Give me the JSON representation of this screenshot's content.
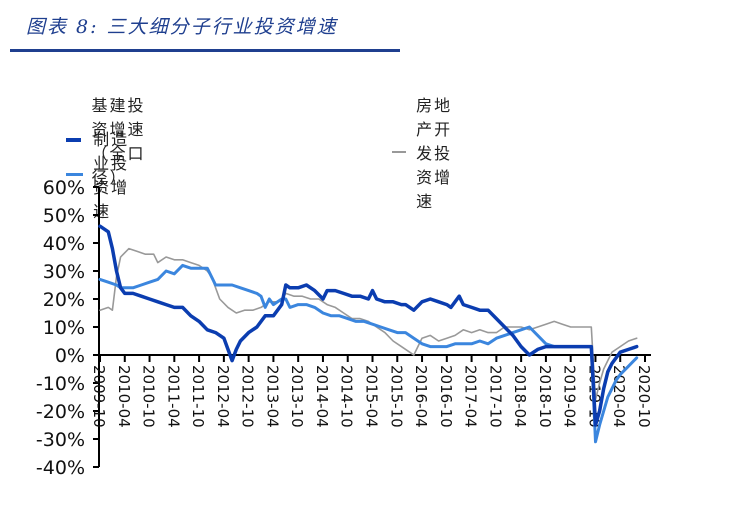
{
  "title": "图表 8: 三大细分子行业投资增速",
  "colors": {
    "infrastructure": "#0b3db0",
    "real_estate": "#999999",
    "manufacturing": "#3b86de",
    "title": "#1f3f8f",
    "axis": "#000000"
  },
  "legend": [
    {
      "label": "基建投资增速（全口径）",
      "color": "#0b3db0"
    },
    {
      "label": "房地产开发投资增速",
      "color": "#999999"
    },
    {
      "label": "制造业投资增速",
      "color": "#3b86de"
    }
  ],
  "chart_data": {
    "type": "line",
    "title": "图表 8: 三大细分子行业投资增速",
    "xlabel": "",
    "ylabel": "",
    "ylim": [
      -40,
      60
    ],
    "y_ticks": [
      "60%",
      "50%",
      "40%",
      "30%",
      "20%",
      "10%",
      "0%",
      "-10%",
      "-20%",
      "-30%",
      "-40%"
    ],
    "x_ticks": [
      "2009-10",
      "2010-04",
      "2010-10",
      "2011-04",
      "2011-10",
      "2012-04",
      "2012-10",
      "2013-04",
      "2013-10",
      "2014-04",
      "2014-10",
      "2015-04",
      "2015-10",
      "2016-04",
      "2016-10",
      "2017-04",
      "2017-10",
      "2018-04",
      "2018-10",
      "2019-04",
      "2019-10",
      "2020-04",
      "2020-10"
    ],
    "grid": false,
    "legend_position": "top",
    "x_unit": "months since 2009-10",
    "series": [
      {
        "name": "基建投资增速（全口径）",
        "points": [
          [
            0,
            46
          ],
          [
            2,
            44
          ],
          [
            3,
            38
          ],
          [
            4,
            30
          ],
          [
            5,
            24
          ],
          [
            6,
            22
          ],
          [
            8,
            22
          ],
          [
            10,
            21
          ],
          [
            12,
            20
          ],
          [
            14,
            19
          ],
          [
            16,
            18
          ],
          [
            18,
            17
          ],
          [
            20,
            17
          ],
          [
            22,
            14
          ],
          [
            24,
            12
          ],
          [
            26,
            9
          ],
          [
            28,
            8
          ],
          [
            30,
            6
          ],
          [
            31,
            2
          ],
          [
            32,
            -2
          ],
          [
            33,
            2
          ],
          [
            34,
            5
          ],
          [
            36,
            8
          ],
          [
            38,
            10
          ],
          [
            40,
            14
          ],
          [
            42,
            14
          ],
          [
            44,
            18
          ],
          [
            45,
            25
          ],
          [
            46,
            24
          ],
          [
            48,
            24
          ],
          [
            50,
            25
          ],
          [
            52,
            23
          ],
          [
            54,
            20
          ],
          [
            55,
            23
          ],
          [
            57,
            23
          ],
          [
            59,
            22
          ],
          [
            61,
            21
          ],
          [
            63,
            21
          ],
          [
            65,
            20
          ],
          [
            66,
            23
          ],
          [
            67,
            20
          ],
          [
            69,
            19
          ],
          [
            71,
            19
          ],
          [
            73,
            18
          ],
          [
            74,
            18
          ],
          [
            76,
            16
          ],
          [
            78,
            19
          ],
          [
            80,
            20
          ],
          [
            82,
            19
          ],
          [
            84,
            18
          ],
          [
            85,
            17
          ],
          [
            87,
            21
          ],
          [
            88,
            18
          ],
          [
            90,
            17
          ],
          [
            92,
            16
          ],
          [
            94,
            16
          ],
          [
            96,
            13
          ],
          [
            98,
            10
          ],
          [
            100,
            7
          ],
          [
            102,
            3
          ],
          [
            104,
            0
          ],
          [
            106,
            2
          ],
          [
            108,
            3
          ],
          [
            110,
            3
          ],
          [
            112,
            3
          ],
          [
            118,
            3
          ],
          [
            119,
            3
          ],
          [
            120,
            -25
          ],
          [
            121,
            -20
          ],
          [
            122,
            -12
          ],
          [
            123,
            -6
          ],
          [
            124,
            -3
          ],
          [
            125,
            -1
          ],
          [
            126,
            1
          ],
          [
            128,
            2
          ],
          [
            130,
            3
          ]
        ]
      },
      {
        "name": "房地产开发投资增速",
        "points": [
          [
            0,
            16
          ],
          [
            2,
            17
          ],
          [
            3,
            16
          ],
          [
            4,
            28
          ],
          [
            5,
            35
          ],
          [
            7,
            38
          ],
          [
            9,
            37
          ],
          [
            11,
            36
          ],
          [
            13,
            36
          ],
          [
            14,
            33
          ],
          [
            16,
            35
          ],
          [
            18,
            34
          ],
          [
            20,
            34
          ],
          [
            22,
            33
          ],
          [
            24,
            32
          ],
          [
            26,
            30
          ],
          [
            27,
            28
          ],
          [
            28,
            24
          ],
          [
            29,
            20
          ],
          [
            31,
            17
          ],
          [
            33,
            15
          ],
          [
            35,
            16
          ],
          [
            37,
            16
          ],
          [
            39,
            17
          ],
          [
            41,
            19
          ],
          [
            43,
            19
          ],
          [
            44,
            20
          ],
          [
            45,
            22
          ],
          [
            47,
            21
          ],
          [
            49,
            21
          ],
          [
            51,
            20
          ],
          [
            53,
            20
          ],
          [
            55,
            18
          ],
          [
            57,
            17
          ],
          [
            59,
            15
          ],
          [
            61,
            13
          ],
          [
            63,
            13
          ],
          [
            65,
            12
          ],
          [
            67,
            10
          ],
          [
            69,
            8
          ],
          [
            71,
            5
          ],
          [
            73,
            3
          ],
          [
            75,
            1
          ],
          [
            76,
            0
          ],
          [
            77,
            3
          ],
          [
            78,
            6
          ],
          [
            80,
            7
          ],
          [
            82,
            5
          ],
          [
            84,
            6
          ],
          [
            86,
            7
          ],
          [
            88,
            9
          ],
          [
            90,
            8
          ],
          [
            92,
            9
          ],
          [
            94,
            8
          ],
          [
            96,
            8
          ],
          [
            98,
            10
          ],
          [
            100,
            10
          ],
          [
            102,
            10
          ],
          [
            104,
            9
          ],
          [
            106,
            10
          ],
          [
            108,
            11
          ],
          [
            110,
            12
          ],
          [
            112,
            11
          ],
          [
            114,
            10
          ],
          [
            116,
            10
          ],
          [
            118,
            10
          ],
          [
            119,
            10
          ],
          [
            120,
            -16
          ],
          [
            121,
            -10
          ],
          [
            122,
            -5
          ],
          [
            123,
            -2
          ],
          [
            124,
            1
          ],
          [
            126,
            3
          ],
          [
            128,
            5
          ],
          [
            130,
            6
          ]
        ]
      },
      {
        "name": "制造业投资增速",
        "points": [
          [
            0,
            27
          ],
          [
            2,
            26
          ],
          [
            4,
            25
          ],
          [
            5,
            24
          ],
          [
            6,
            24
          ],
          [
            8,
            24
          ],
          [
            10,
            25
          ],
          [
            12,
            26
          ],
          [
            14,
            27
          ],
          [
            16,
            30
          ],
          [
            18,
            29
          ],
          [
            20,
            32
          ],
          [
            22,
            31
          ],
          [
            24,
            31
          ],
          [
            26,
            31
          ],
          [
            28,
            25
          ],
          [
            30,
            25
          ],
          [
            32,
            25
          ],
          [
            34,
            24
          ],
          [
            36,
            23
          ],
          [
            38,
            22
          ],
          [
            39,
            21
          ],
          [
            40,
            17
          ],
          [
            41,
            20
          ],
          [
            42,
            18
          ],
          [
            44,
            20
          ],
          [
            45,
            20
          ],
          [
            46,
            17
          ],
          [
            48,
            18
          ],
          [
            50,
            18
          ],
          [
            52,
            17
          ],
          [
            54,
            15
          ],
          [
            56,
            14
          ],
          [
            58,
            14
          ],
          [
            60,
            13
          ],
          [
            62,
            12
          ],
          [
            64,
            12
          ],
          [
            66,
            11
          ],
          [
            68,
            10
          ],
          [
            70,
            9
          ],
          [
            72,
            8
          ],
          [
            74,
            8
          ],
          [
            76,
            6
          ],
          [
            78,
            4
          ],
          [
            80,
            3
          ],
          [
            82,
            3
          ],
          [
            84,
            3
          ],
          [
            86,
            4
          ],
          [
            88,
            4
          ],
          [
            90,
            4
          ],
          [
            92,
            5
          ],
          [
            94,
            4
          ],
          [
            96,
            6
          ],
          [
            98,
            7
          ],
          [
            100,
            8
          ],
          [
            102,
            9
          ],
          [
            104,
            10
          ],
          [
            106,
            7
          ],
          [
            108,
            4
          ],
          [
            110,
            3
          ],
          [
            112,
            3
          ],
          [
            116,
            3
          ],
          [
            118,
            3
          ],
          [
            119,
            3
          ],
          [
            120,
            -31
          ],
          [
            121,
            -25
          ],
          [
            122,
            -20
          ],
          [
            123,
            -15
          ],
          [
            124,
            -12
          ],
          [
            125,
            -9
          ],
          [
            126,
            -7
          ],
          [
            128,
            -4
          ],
          [
            130,
            -1
          ]
        ]
      }
    ]
  }
}
